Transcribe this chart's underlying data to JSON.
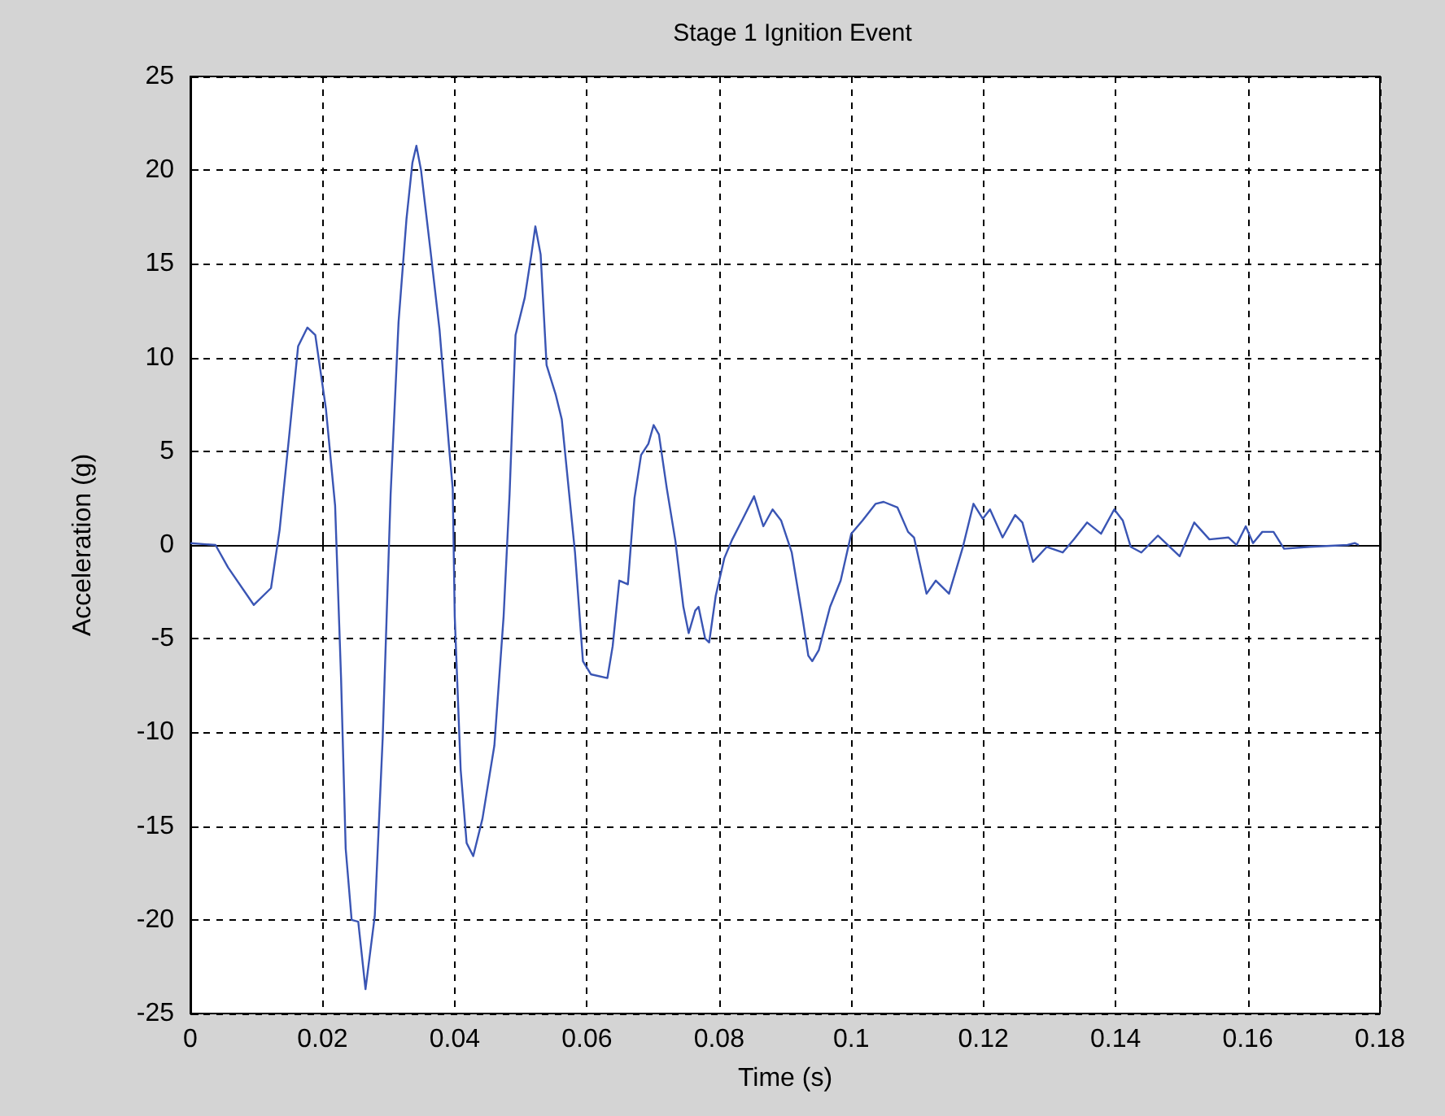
{
  "chart_data": {
    "type": "line",
    "title": "Stage 1 Ignition Event",
    "xlabel": "Time (s)",
    "ylabel": "Acceleration (g)",
    "xlim": [
      0,
      0.18
    ],
    "xticks": [
      0,
      0.02,
      0.04,
      0.06,
      0.08,
      0.1,
      0.12,
      0.14,
      0.16,
      0.18
    ],
    "ylim": [
      -25,
      25
    ],
    "yticks": [
      -25,
      -20,
      -15,
      -10,
      -5,
      0,
      5,
      10,
      15,
      20,
      25
    ],
    "grid": true,
    "line_style": "solid",
    "marker": "none",
    "series": [
      {
        "color": "#3a55b4",
        "x": [
          0,
          0.0038,
          0.0057,
          0.0096,
          0.0122,
          0.0135,
          0.015,
          0.0163,
          0.0177,
          0.0189,
          0.0205,
          0.0219,
          0.0228,
          0.0235,
          0.0244,
          0.0254,
          0.0265,
          0.0279,
          0.0291,
          0.0303,
          0.0315,
          0.0327,
          0.0336,
          0.0342,
          0.0349,
          0.0363,
          0.0377,
          0.0391,
          0.0397,
          0.04,
          0.0409,
          0.0418,
          0.0428,
          0.0442,
          0.046,
          0.0474,
          0.0483,
          0.0492,
          0.0506,
          0.0516,
          0.0522,
          0.053,
          0.0539,
          0.0553,
          0.0562,
          0.0582,
          0.0594,
          0.0606,
          0.0631,
          0.0639,
          0.0649,
          0.0662,
          0.0672,
          0.0682,
          0.0693,
          0.0701,
          0.0709,
          0.0721,
          0.0734,
          0.0746,
          0.0754,
          0.0764,
          0.0769,
          0.0779,
          0.0785,
          0.0795,
          0.0808,
          0.082,
          0.0836,
          0.0853,
          0.0867,
          0.0881,
          0.0894,
          0.091,
          0.0925,
          0.0935,
          0.0941,
          0.0951,
          0.0968,
          0.0984,
          0.1,
          0.1017,
          0.1037,
          0.1049,
          0.107,
          0.1086,
          0.1095,
          0.1114,
          0.1128,
          0.1148,
          0.1169,
          0.1185,
          0.1199,
          0.121,
          0.1229,
          0.1248,
          0.1259,
          0.1275,
          0.1296,
          0.132,
          0.1337,
          0.1357,
          0.1378,
          0.1398,
          0.1411,
          0.1423,
          0.1439,
          0.1464,
          0.1497,
          0.1519,
          0.1542,
          0.1571,
          0.1583,
          0.1597,
          0.1608,
          0.1622,
          0.1639,
          0.1655,
          0.1694,
          0.1751,
          0.1762,
          0.1768
        ],
        "values": [
          0.1,
          0,
          -1.2,
          -3.2,
          -2.3,
          0.8,
          6,
          10.6,
          11.6,
          11.2,
          7.3,
          2.1,
          -7.1,
          -16.2,
          -20,
          -20.1,
          -23.7,
          -19.8,
          -10.3,
          2.7,
          11.9,
          17.4,
          20.4,
          21.3,
          20,
          15.8,
          11.5,
          5.4,
          3,
          -3.8,
          -12,
          -15.9,
          -16.6,
          -14.6,
          -10.7,
          -3.8,
          2.7,
          11.2,
          13.2,
          15.5,
          17,
          15.5,
          9.6,
          8,
          6.7,
          -0.4,
          -6.2,
          -6.9,
          -7.1,
          -5.4,
          -1.9,
          -2.1,
          2.5,
          4.8,
          5.4,
          6.4,
          5.9,
          3,
          0.2,
          -3.3,
          -4.7,
          -3.5,
          -3.3,
          -5,
          -5.2,
          -2.7,
          -0.7,
          0.3,
          1.4,
          2.6,
          1,
          1.9,
          1.3,
          -0.4,
          -3.6,
          -5.9,
          -6.2,
          -5.6,
          -3.3,
          -1.9,
          0.6,
          1.3,
          2.2,
          2.3,
          2,
          0.7,
          0.4,
          -2.6,
          -1.9,
          -2.6,
          -0.1,
          2.2,
          1.4,
          1.9,
          0.4,
          1.6,
          1.2,
          -0.9,
          -0.1,
          -0.4,
          0.3,
          1.2,
          0.6,
          1.9,
          1.3,
          -0.1,
          -0.4,
          0.5,
          -0.6,
          1.2,
          0.3,
          0.4,
          0,
          1,
          0.1,
          0.7,
          0.7,
          -0.2,
          -0.1,
          0,
          0.1,
          0
        ]
      }
    ]
  }
}
